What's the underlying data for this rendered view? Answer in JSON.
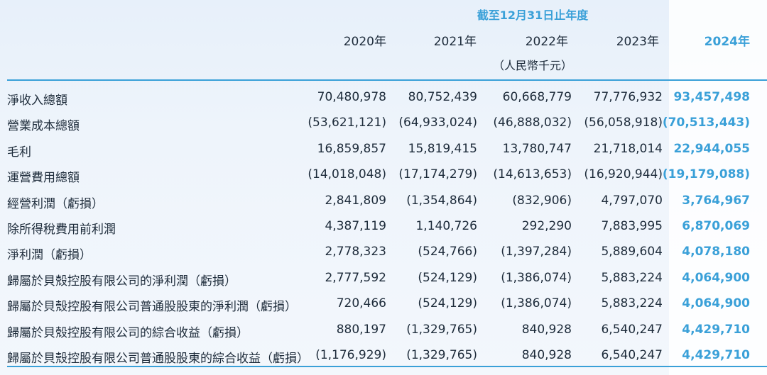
{
  "header": {
    "period_label": "截至12月31日止年度",
    "unit_label": "（人民幣千元）",
    "years": [
      "2020年",
      "2021年",
      "2022年",
      "2023年",
      "2024年"
    ]
  },
  "table": {
    "rows": [
      {
        "label": "淨收入總額",
        "values": [
          "70,480,978",
          "80,752,439",
          "60,668,779",
          "77,776,932",
          "93,457,498"
        ]
      },
      {
        "label": "營業成本總額",
        "values": [
          "(53,621,121)",
          "(64,933,024)",
          "(46,888,032)",
          "(56,058,918)",
          "(70,513,443)"
        ]
      },
      {
        "label": "毛利",
        "values": [
          "16,859,857",
          "15,819,415",
          "13,780,747",
          "21,718,014",
          "22,944,055"
        ]
      },
      {
        "label": "運營費用總額",
        "values": [
          "(14,018,048)",
          "(17,174,279)",
          "(14,613,653)",
          "(16,920,944)",
          "(19,179,088)"
        ]
      },
      {
        "label": "經營利潤（虧損）",
        "values": [
          "2,841,809",
          "(1,354,864)",
          "(832,906)",
          "4,797,070",
          "3,764,967"
        ]
      },
      {
        "label": "除所得稅費用前利潤",
        "values": [
          "4,387,119",
          "1,140,726",
          "292,290",
          "7,883,995",
          "6,870,069"
        ]
      },
      {
        "label": "淨利潤（虧損）",
        "values": [
          "2,778,323",
          "(524,766)",
          "(1,397,284)",
          "5,889,604",
          "4,078,180"
        ]
      },
      {
        "label": "歸屬於貝殼控股有限公司的淨利潤（虧損）",
        "values": [
          "2,777,592",
          "(524,129)",
          "(1,386,074)",
          "5,883,224",
          "4,064,900"
        ]
      },
      {
        "label": "歸屬於貝殼控股有限公司普通股股東的淨利潤（虧損）",
        "values": [
          "720,466",
          "(524,129)",
          "(1,386,074)",
          "5,883,224",
          "4,064,900"
        ]
      },
      {
        "label": "歸屬於貝殼控股有限公司的綜合收益（虧損）",
        "values": [
          "880,197",
          "(1,329,765)",
          "840,928",
          "6,540,247",
          "4,429,710"
        ]
      },
      {
        "label": "歸屬於貝殼控股有限公司普通股股東的綜合收益（虧損）",
        "values": [
          "(1,176,929)",
          "(1,329,765)",
          "840,928",
          "6,540,247",
          "4,429,710"
        ]
      }
    ]
  },
  "colors": {
    "accent": "#3aa0d8",
    "text": "#1d2b3a"
  }
}
